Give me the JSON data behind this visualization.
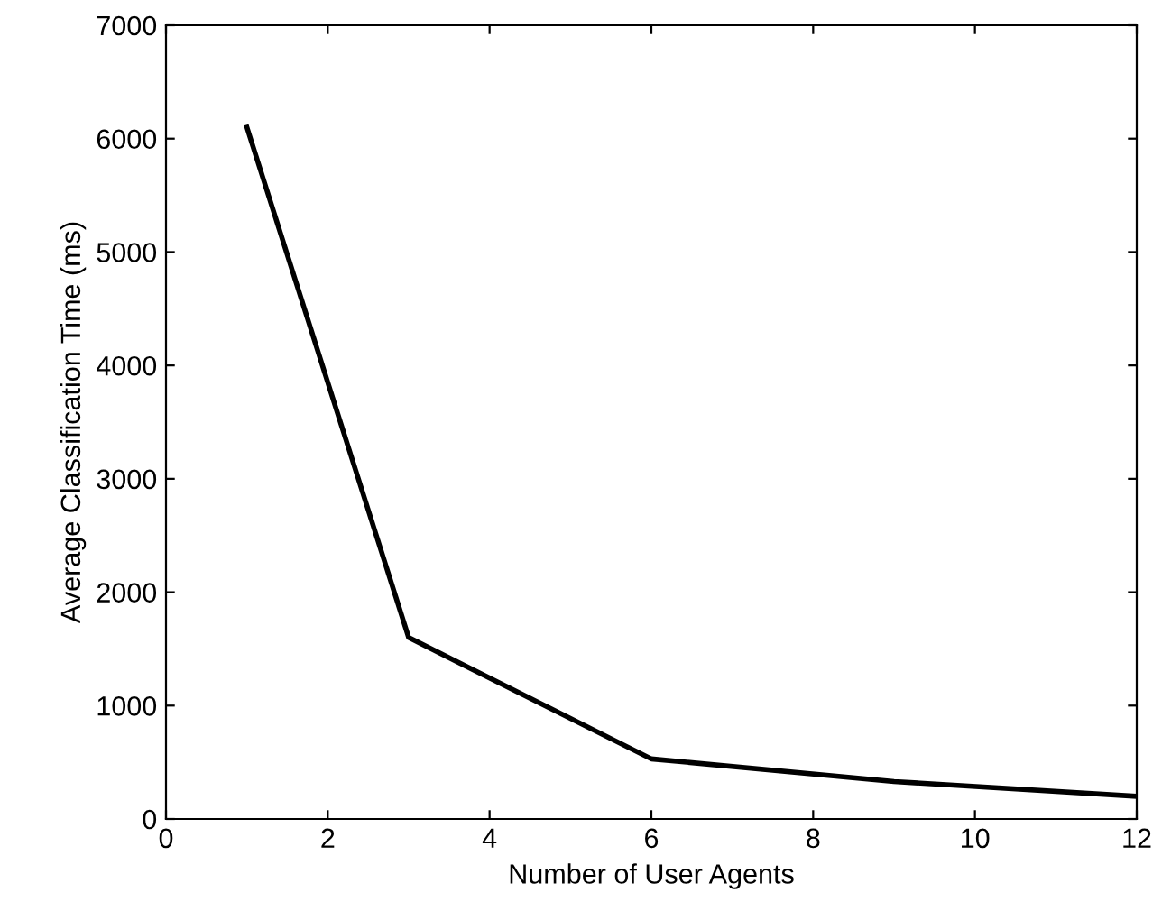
{
  "chart_data": {
    "type": "line",
    "xlabel": "Number of User Agents",
    "ylabel": "Average Classification Time (ms)",
    "x": [
      1,
      3,
      6,
      9,
      12
    ],
    "series": [
      {
        "color": "#000000",
        "values": [
          6100,
          1600,
          530,
          330,
          200
        ]
      }
    ],
    "xlim": [
      0,
      12
    ],
    "xticks": [
      0,
      2,
      4,
      6,
      8,
      10,
      12
    ],
    "ylim": [
      0,
      7000
    ],
    "yticks": [
      0,
      1000,
      2000,
      3000,
      4000,
      5000,
      6000,
      7000
    ],
    "grid": false,
    "legend": false,
    "marker": "none",
    "line_style": "solid"
  }
}
